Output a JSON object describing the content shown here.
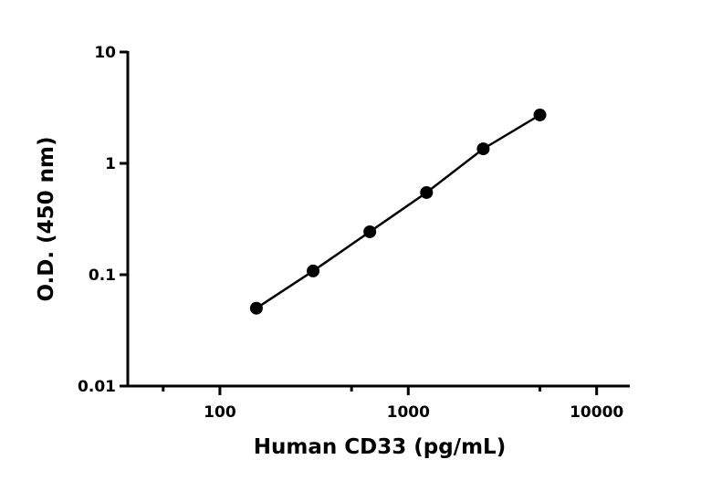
{
  "chart_data": {
    "type": "scatter",
    "x_label": "Human CD33 (pg/mL)",
    "y_label": "O.D. (450 nm)",
    "x": [
      156.25,
      312.5,
      625,
      1250,
      2500,
      5000
    ],
    "series": [
      {
        "color": "#000000",
        "values": [
          0.05,
          0.108,
          0.243,
          0.547,
          1.35,
          2.72
        ]
      }
    ],
    "x_log": true,
    "y_log": true,
    "xlim": [
      30,
      15000
    ],
    "ylim": [
      0.01,
      10
    ],
    "xticks": [
      100,
      1000,
      10000
    ],
    "xminorticks": [
      50,
      500,
      5000
    ],
    "yticks": [
      0.01,
      0.1,
      1,
      10
    ]
  }
}
